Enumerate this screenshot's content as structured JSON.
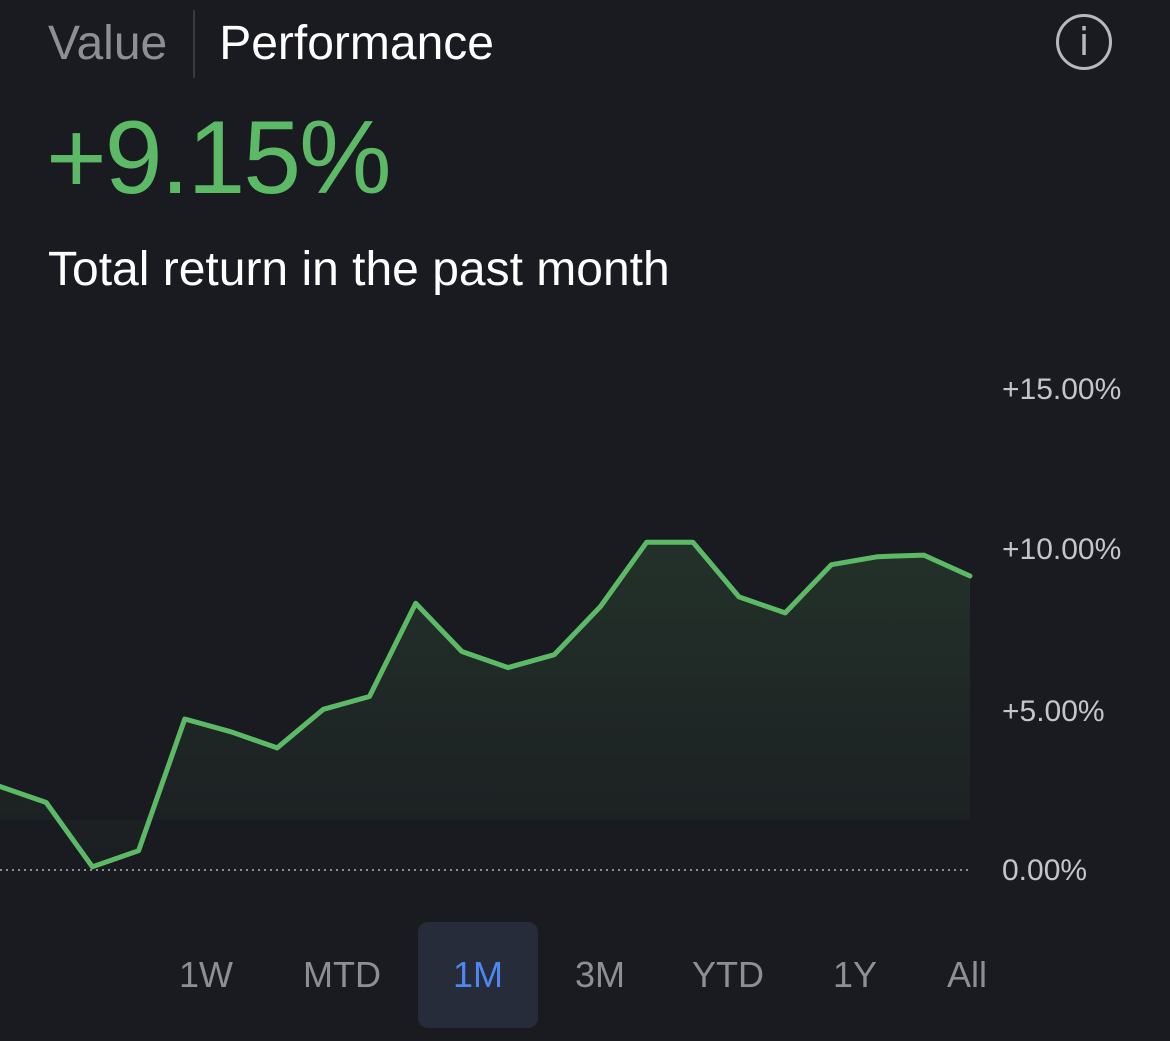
{
  "header": {
    "tabs": [
      {
        "label": "Value",
        "active": false
      },
      {
        "label": "Performance",
        "active": true
      }
    ],
    "info_icon": "info-icon",
    "info_glyph": "i"
  },
  "summary": {
    "return_value": "+9.15%",
    "return_label": "Total return in the past month",
    "return_color": "#5cba67"
  },
  "chart_data": {
    "type": "area",
    "title": "",
    "xlabel": "",
    "ylabel": "",
    "y_tick_labels": [
      "+15.00%",
      "+10.00%",
      "+5.00%",
      "0.00%"
    ],
    "ylim": [
      0,
      15
    ],
    "baseline": 0,
    "line_color": "#5cba67",
    "series": [
      {
        "values": [
          2.6,
          2.1,
          0.1,
          0.6,
          4.7,
          4.3,
          3.8,
          5.0,
          5.4,
          8.3,
          6.8,
          6.3,
          6.7,
          8.2,
          10.2,
          10.2,
          8.5,
          8.0,
          9.5,
          9.75,
          9.8,
          9.15
        ]
      }
    ]
  },
  "time_ranges": {
    "options": [
      "1W",
      "MTD",
      "1M",
      "3M",
      "YTD",
      "1Y",
      "All"
    ],
    "selected": "1M",
    "accent": "#4f86f0"
  }
}
